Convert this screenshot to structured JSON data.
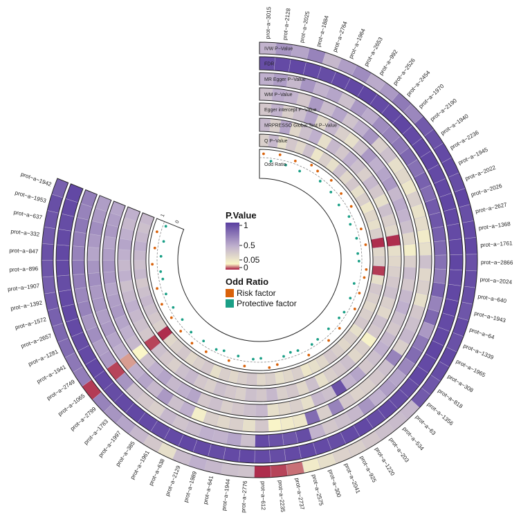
{
  "chart_data": {
    "type": "circular-heatmap",
    "tracks": [
      "IVW P−Value",
      "FDR",
      "MR Egger P−Value",
      "WM P−Value",
      "Egger intercept P−Value",
      "MRPRESSO Global Test P−Value",
      "Q P−Value",
      "Odd Ratio"
    ],
    "proteins": [
      "prot−a−3015",
      "prot−a−2128",
      "prot−a−2025",
      "prot−a−1884",
      "prot−a−2764",
      "prot−a−1964",
      "prot−a−2653",
      "prot−a−992",
      "prot−a−2526",
      "prot−a−2454",
      "prot−a−1970",
      "prot−a−2190",
      "prot−a−1940",
      "prot−a−2236",
      "prot−a−1945",
      "prot−a−2022",
      "prot−a−2026",
      "prot−a−2627",
      "prot−a−1368",
      "prot−a−1761",
      "prot−a−2866",
      "prot−a−2024",
      "prot−a−640",
      "prot−a−1943",
      "prot−a−64",
      "prot−a−1339",
      "prot−a−1965",
      "prot−a−308",
      "prot−a−818",
      "prot−a−1356",
      "prot−a−63",
      "prot−a−534",
      "prot−a−203",
      "prot−a−1220",
      "prot−a−925",
      "prot−a−2041",
      "prot−a−300",
      "prot−a−2575",
      "prot−a−2737",
      "prot−a−2235",
      "prot−a−612",
      "prot−a−2776",
      "prot−a−1944",
      "prot−a−641",
      "prot−a−1989",
      "prot−a−2129",
      "prot−a−638",
      "prot−a−1961",
      "prot−a−385",
      "prot−a−1997",
      "prot−a−1783",
      "prot−a−2799",
      "prot−a−1065",
      "prot−a−2749",
      "prot−a−1941",
      "prot−a−1281",
      "prot−a−2657",
      "prot−a−1572",
      "prot−a−1392",
      "prot−a−1907",
      "prot−a−896",
      "prot−a−847",
      "prot−a−332",
      "prot−a−637",
      "prot−a−1953",
      "prot−a−1942"
    ],
    "pvalues": {
      "ivw": [
        0.48,
        0.62,
        0.55,
        0.7,
        0.45,
        0.58,
        0.66,
        0.52,
        0.6,
        0.74,
        0.68,
        0.88,
        0.92,
        0.95,
        0.96,
        0.94,
        0.97,
        0.93,
        0.95,
        0.96,
        0.92,
        0.94,
        0.93,
        0.9,
        0.95,
        0.92,
        0.96,
        0.94,
        0.9,
        0.88,
        0.45,
        0.42,
        0.4,
        0.35,
        0.3,
        0.28,
        0.2,
        0.12,
        0.02,
        0.01,
        0.005,
        0.38,
        0.4,
        0.45,
        0.5,
        0.42,
        0.2,
        0.35,
        0.45,
        0.55,
        0.62,
        0.7,
        0.008,
        0.72,
        0.75,
        0.8,
        0.82,
        0.85,
        0.88,
        0.86,
        0.9,
        0.92,
        0.88,
        0.9,
        0.93,
        0.85
      ],
      "fdr": [
        0.94,
        0.95,
        0.96,
        0.95,
        0.94,
        0.95,
        0.96,
        0.97,
        0.95,
        0.96,
        0.97,
        0.95,
        0.96,
        0.97,
        0.95,
        0.96,
        0.97,
        0.96,
        0.95,
        0.96,
        0.97,
        0.95,
        0.96,
        0.97,
        0.95,
        0.96,
        0.97,
        0.95,
        0.96,
        0.94,
        0.94,
        0.95,
        0.94,
        0.96,
        0.95,
        0.94,
        0.95,
        0.96,
        0.95,
        0.94,
        0.95,
        0.96,
        0.95,
        0.94,
        0.95,
        0.96,
        0.95,
        0.94,
        0.95,
        0.96,
        0.95,
        0.94,
        0.95,
        0.96,
        0.95,
        0.94,
        0.95,
        0.96,
        0.95,
        0.94,
        0.95,
        0.96,
        0.95,
        0.94,
        0.95,
        0.96
      ],
      "egger": [
        0.5,
        0.58,
        0.45,
        0.62,
        0.48,
        0.55,
        0.4,
        0.6,
        0.52,
        0.66,
        0.7,
        0.75,
        0.82,
        0.78,
        0.85,
        0.8,
        0.88,
        0.9,
        0.86,
        0.82,
        0.78,
        0.74,
        0.85,
        0.7,
        0.82,
        0.6,
        0.75,
        0.8,
        0.68,
        0.55,
        0.58,
        0.5,
        0.62,
        0.45,
        0.4,
        0.35,
        0.48,
        0.94,
        0.9,
        0.92,
        0.95,
        0.4,
        0.55,
        0.48,
        0.5,
        0.42,
        0.38,
        0.45,
        0.3,
        0.35,
        0.4,
        0.62,
        0.01,
        0.6,
        0.58,
        0.65,
        0.62,
        0.7,
        0.68,
        0.72,
        0.75,
        0.7,
        0.72,
        0.75,
        0.7,
        0.72
      ],
      "wm": [
        0.4,
        0.52,
        0.48,
        0.35,
        0.6,
        0.42,
        0.55,
        0.38,
        0.5,
        0.62,
        0.3,
        0.4,
        0.2,
        0.25,
        0.15,
        0.3,
        0.18,
        0.22,
        0.12,
        0.2,
        0.4,
        0.25,
        0.3,
        0.2,
        0.35,
        0.4,
        0.45,
        0.3,
        0.7,
        0.4,
        0.35,
        0.3,
        0.28,
        0.35,
        0.7,
        0.3,
        0.8,
        0.15,
        0.12,
        0.06,
        0.35,
        0.2,
        0.3,
        0.25,
        0.3,
        0.1,
        0.5,
        0.4,
        0.6,
        0.45,
        0.55,
        0.5,
        0.03,
        0.5,
        0.55,
        0.6,
        0.58,
        0.62,
        0.6,
        0.65,
        0.62,
        0.55,
        0.6,
        0.65,
        0.6,
        0.58
      ],
      "intercept": [
        0.35,
        0.48,
        0.3,
        0.4,
        0.55,
        0.25,
        0.45,
        0.3,
        0.2,
        0.38,
        0.6,
        0.5,
        0.55,
        0.6,
        0.45,
        0.52,
        0.48,
        0.4,
        0.25,
        0.1,
        0.3,
        0.42,
        0.35,
        0.45,
        0.5,
        0.4,
        0.35,
        0.45,
        0.5,
        0.4,
        0.35,
        0.55,
        0.48,
        0.92,
        0.4,
        0.45,
        0.2,
        0.3,
        0.25,
        0.2,
        0.45,
        0.4,
        0.35,
        0.3,
        0.4,
        0.35,
        0.55,
        0.5,
        0.45,
        0.55,
        0.5,
        0.4,
        0.05,
        0.45,
        0.5,
        0.55,
        0.6,
        0.58,
        0.55,
        0.6,
        0.62,
        0.58,
        0.55,
        0.6,
        0.58,
        0.55
      ],
      "presso": [
        0.45,
        0.3,
        0.55,
        0.25,
        0.4,
        0.5,
        0.2,
        0.45,
        0.35,
        0.5,
        0.4,
        0.3,
        0.45,
        0.35,
        0.2,
        0.4,
        0.3,
        0.25,
        0.005,
        0.2,
        0.25,
        0.3,
        0.35,
        0.4,
        0.3,
        0.25,
        0.4,
        0.35,
        0.08,
        0.3,
        0.25,
        0.4,
        0.35,
        0.3,
        0.2,
        0.4,
        0.25,
        0.35,
        0.3,
        0.45,
        0.35,
        0.4,
        0.3,
        0.35,
        0.4,
        0.3,
        0.35,
        0.45,
        0.4,
        0.3,
        0.35,
        0.4,
        0.01,
        0.35,
        0.4,
        0.45,
        0.5,
        0.45,
        0.4,
        0.5,
        0.45,
        0.5,
        0.55,
        0.5,
        0.45,
        0.5
      ],
      "q": [
        0.3,
        0.45,
        0.2,
        0.35,
        0.25,
        0.4,
        0.15,
        0.3,
        0.2,
        0.4,
        0.25,
        0.35,
        0.2,
        0.3,
        0.15,
        0.25,
        0.2,
        0.3,
        0.005,
        0.25,
        0.3,
        0.008,
        0.2,
        0.35,
        0.3,
        0.25,
        0.3,
        0.35,
        0.2,
        0.3,
        0.25,
        0.3,
        0.35,
        0.25,
        0.2,
        0.15,
        0.3,
        0.25,
        0.2,
        0.3,
        0.25,
        0.35,
        0.3,
        0.25,
        0.3,
        0.2,
        0.35,
        0.3,
        0.25,
        0.35,
        0.3,
        0.25,
        0.005,
        0.3,
        0.35,
        0.4,
        0.45,
        0.4,
        0.35,
        0.45,
        0.4,
        0.45,
        0.5,
        0.45,
        0.4,
        0.45
      ]
    },
    "odd_ratio_factor": [
      "risk",
      "protective",
      "risk",
      "protective",
      "risk",
      "protective",
      "risk",
      "risk",
      "protective",
      "risk",
      "protective",
      "risk",
      "protective",
      "risk",
      "protective",
      "protective",
      "risk",
      "protective",
      "risk",
      "protective",
      "protective",
      "risk",
      "risk",
      "protective",
      "risk",
      "protective",
      "risk",
      "protective",
      "protective",
      "risk",
      "protective",
      "risk",
      "protective",
      "protective",
      "risk",
      "protective",
      "protective",
      "protective",
      "risk",
      "risk",
      "protective",
      "protective",
      "risk",
      "protective",
      "risk",
      "protective",
      "protective",
      "risk",
      "protective",
      "risk",
      "protective",
      "risk",
      "protective",
      "risk",
      "protective",
      "risk",
      "protective",
      "risk",
      "protective",
      "protective",
      "risk",
      "protective",
      "risk",
      "protective",
      "risk",
      "protective"
    ],
    "odd_ratio_offset": [
      0.4,
      -0.3,
      0.5,
      -0.4,
      0.3,
      -0.5,
      0.6,
      0.4,
      -0.3,
      0.5,
      -0.4,
      0.3,
      -0.6,
      0.4,
      -0.3,
      -0.5,
      0.4,
      -0.3,
      0.5,
      -0.4,
      -0.3,
      0.5,
      0.4,
      -0.5,
      0.3,
      -0.4,
      0.5,
      -0.3,
      -0.4,
      0.3,
      -0.5,
      0.4,
      -0.4,
      -0.3,
      0.5,
      -0.4,
      -0.5,
      -0.3,
      0.4,
      0.6,
      -0.4,
      -0.3,
      0.5,
      -0.4,
      0.3,
      -0.5,
      -0.3,
      0.4,
      -0.4,
      0.5,
      -0.3,
      0.4,
      -0.5,
      0.3,
      -0.4,
      0.5,
      -0.3,
      0.4,
      -0.4,
      -0.3,
      0.5,
      -0.4,
      0.3,
      -0.5,
      0.4,
      -0.3
    ],
    "odd_ratio_ticks": [
      "0",
      "1"
    ],
    "legend": {
      "pvalue_title": "P.Value",
      "pvalue_ticks": [
        "1",
        "0.5",
        "0.05",
        "0"
      ],
      "or_title": "Odd Ratio",
      "risk_label": "Risk factor",
      "protective_label": "Protective factor"
    },
    "colors": {
      "low": "#a6173f",
      "lowmid": "#faf6c8",
      "mid": "#bfb0cd",
      "high": "#5a3fa0",
      "risk": "#d9620b",
      "protective": "#1a9f86",
      "outline": "#222222"
    }
  }
}
